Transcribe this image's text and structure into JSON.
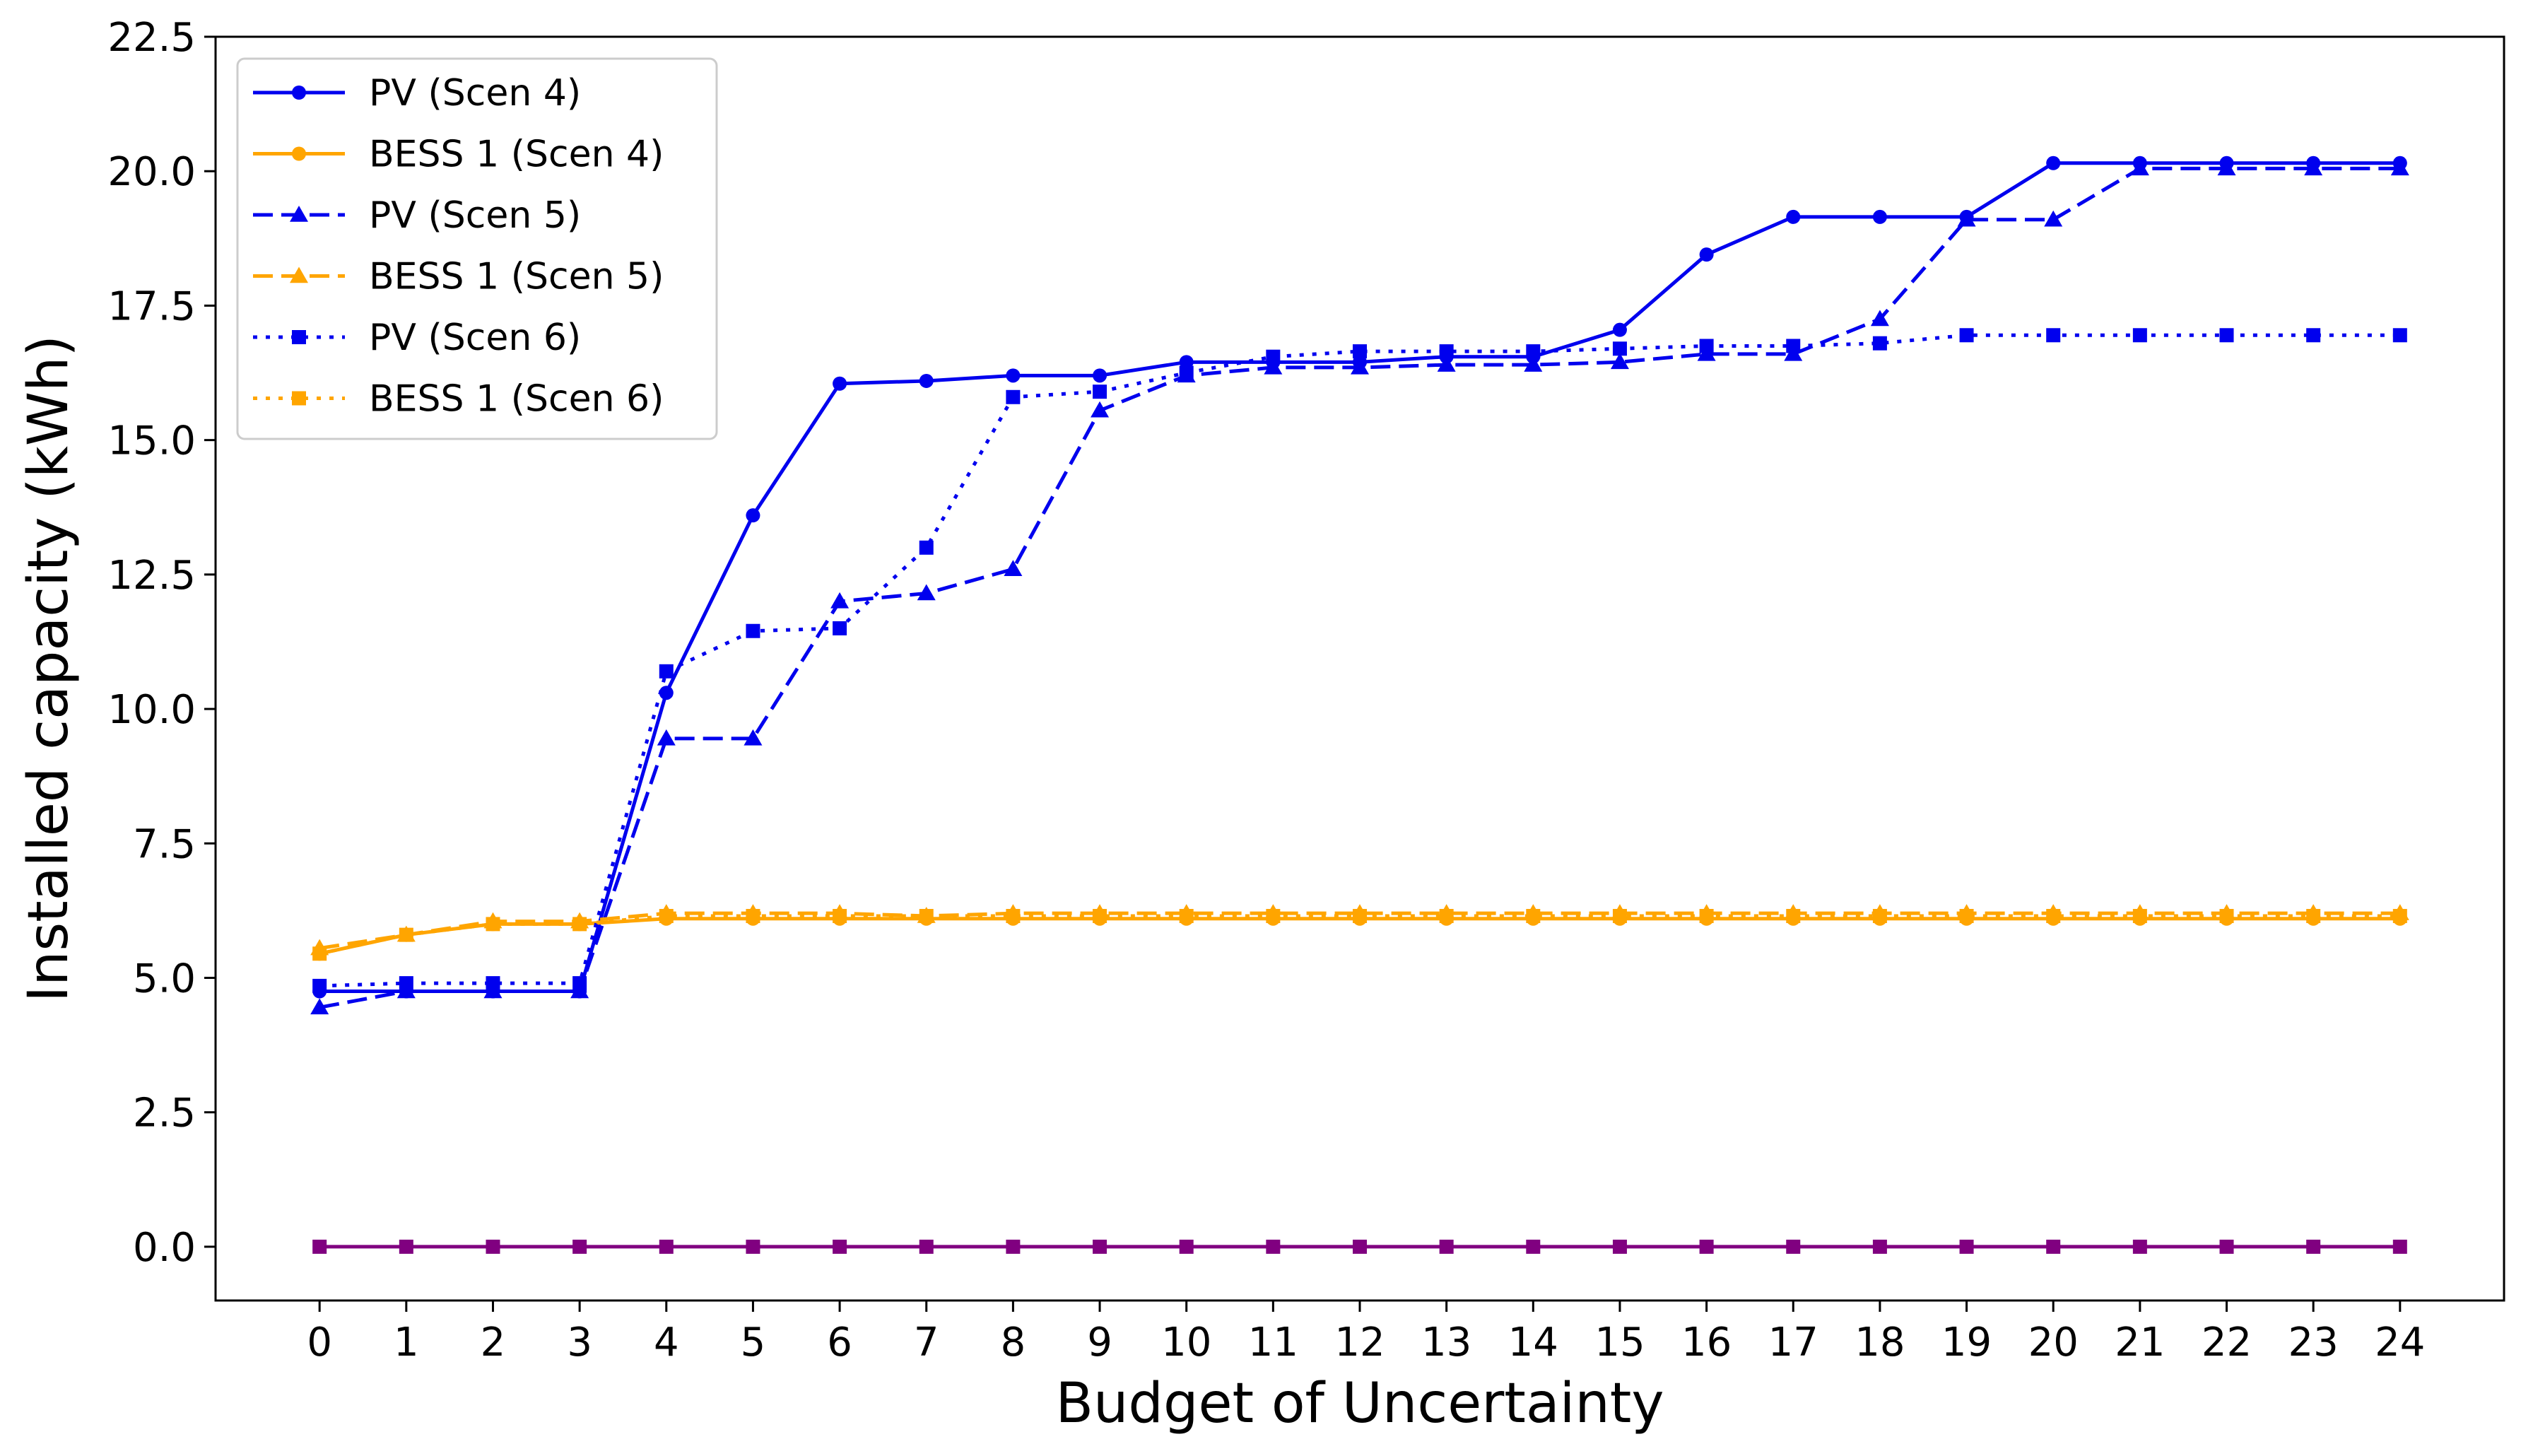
{
  "chart_data": {
    "type": "line",
    "xlabel": "Budget of Uncertainty",
    "ylabel": "Installed capacity (kWh)",
    "xlim": [
      -1.2,
      25.2
    ],
    "ylim": [
      -1.0,
      22.5
    ],
    "x": [
      0,
      1,
      2,
      3,
      4,
      5,
      6,
      7,
      8,
      9,
      10,
      11,
      12,
      13,
      14,
      15,
      16,
      17,
      18,
      19,
      20,
      21,
      22,
      23,
      24
    ],
    "xticks": [
      "0",
      "1",
      "2",
      "3",
      "4",
      "5",
      "6",
      "7",
      "8",
      "9",
      "10",
      "11",
      "12",
      "13",
      "14",
      "15",
      "16",
      "17",
      "18",
      "19",
      "20",
      "21",
      "22",
      "23",
      "24"
    ],
    "yticks": [
      "0.0",
      "2.5",
      "5.0",
      "7.5",
      "10.0",
      "12.5",
      "15.0",
      "17.5",
      "20.0",
      "22.5"
    ],
    "ytick_values": [
      0,
      2.5,
      5,
      7.5,
      10,
      12.5,
      15,
      17.5,
      20,
      22.5
    ],
    "grid": false,
    "legend_position": "top-left",
    "series": [
      {
        "name": "PV (Scen 4)",
        "color": "#0000ee",
        "dash": "solid",
        "marker": "circle",
        "values": [
          4.75,
          4.75,
          4.75,
          4.75,
          10.3,
          13.6,
          16.05,
          16.1,
          16.2,
          16.2,
          16.45,
          16.45,
          16.45,
          16.55,
          16.55,
          17.05,
          18.45,
          19.15,
          19.15,
          19.15,
          20.15,
          20.15,
          20.15,
          20.15,
          20.15
        ]
      },
      {
        "name": "BESS 1 (Scen 4)",
        "color": "#ffa500",
        "dash": "solid",
        "marker": "circle",
        "values": [
          5.45,
          5.8,
          6.0,
          6.0,
          6.1,
          6.1,
          6.1,
          6.1,
          6.1,
          6.1,
          6.1,
          6.1,
          6.1,
          6.1,
          6.1,
          6.1,
          6.1,
          6.1,
          6.1,
          6.1,
          6.1,
          6.1,
          6.1,
          6.1,
          6.1
        ]
      },
      {
        "name": "PV (Scen 5)",
        "color": "#0000ee",
        "dash": "dashed",
        "marker": "triangle",
        "values": [
          4.45,
          4.75,
          4.75,
          4.75,
          9.45,
          9.45,
          12.0,
          12.15,
          12.6,
          15.55,
          16.2,
          16.35,
          16.35,
          16.4,
          16.4,
          16.45,
          16.6,
          16.6,
          17.25,
          19.1,
          19.1,
          20.05,
          20.05,
          20.05,
          20.05
        ]
      },
      {
        "name": "BESS 1 (Scen 5)",
        "color": "#ffa500",
        "dash": "dashed",
        "marker": "triangle",
        "values": [
          5.55,
          5.8,
          6.05,
          6.05,
          6.2,
          6.2,
          6.2,
          6.15,
          6.2,
          6.2,
          6.2,
          6.2,
          6.2,
          6.2,
          6.2,
          6.2,
          6.2,
          6.2,
          6.2,
          6.2,
          6.2,
          6.2,
          6.2,
          6.2,
          6.2
        ]
      },
      {
        "name": "PV (Scen 6)",
        "color": "#0000ee",
        "dash": "dotted",
        "marker": "square",
        "values": [
          4.85,
          4.9,
          4.9,
          4.9,
          10.7,
          11.45,
          11.5,
          13.0,
          15.8,
          15.9,
          16.25,
          16.55,
          16.65,
          16.65,
          16.65,
          16.7,
          16.75,
          16.75,
          16.8,
          16.95,
          16.95,
          16.95,
          16.95,
          16.95,
          16.95
        ]
      },
      {
        "name": "BESS 1 (Scen 6)",
        "color": "#ffa500",
        "dash": "dotted",
        "marker": "square",
        "values": [
          5.45,
          5.8,
          6.0,
          6.0,
          6.15,
          6.15,
          6.15,
          6.15,
          6.15,
          6.15,
          6.15,
          6.15,
          6.15,
          6.15,
          6.15,
          6.15,
          6.15,
          6.15,
          6.15,
          6.15,
          6.15,
          6.15,
          6.15,
          6.15,
          6.15
        ]
      },
      {
        "name": "",
        "color": "#800080",
        "dash": "solid",
        "marker": "square",
        "in_legend": false,
        "values": [
          0,
          0,
          0,
          0,
          0,
          0,
          0,
          0,
          0,
          0,
          0,
          0,
          0,
          0,
          0,
          0,
          0,
          0,
          0,
          0,
          0,
          0,
          0,
          0,
          0
        ]
      }
    ]
  }
}
